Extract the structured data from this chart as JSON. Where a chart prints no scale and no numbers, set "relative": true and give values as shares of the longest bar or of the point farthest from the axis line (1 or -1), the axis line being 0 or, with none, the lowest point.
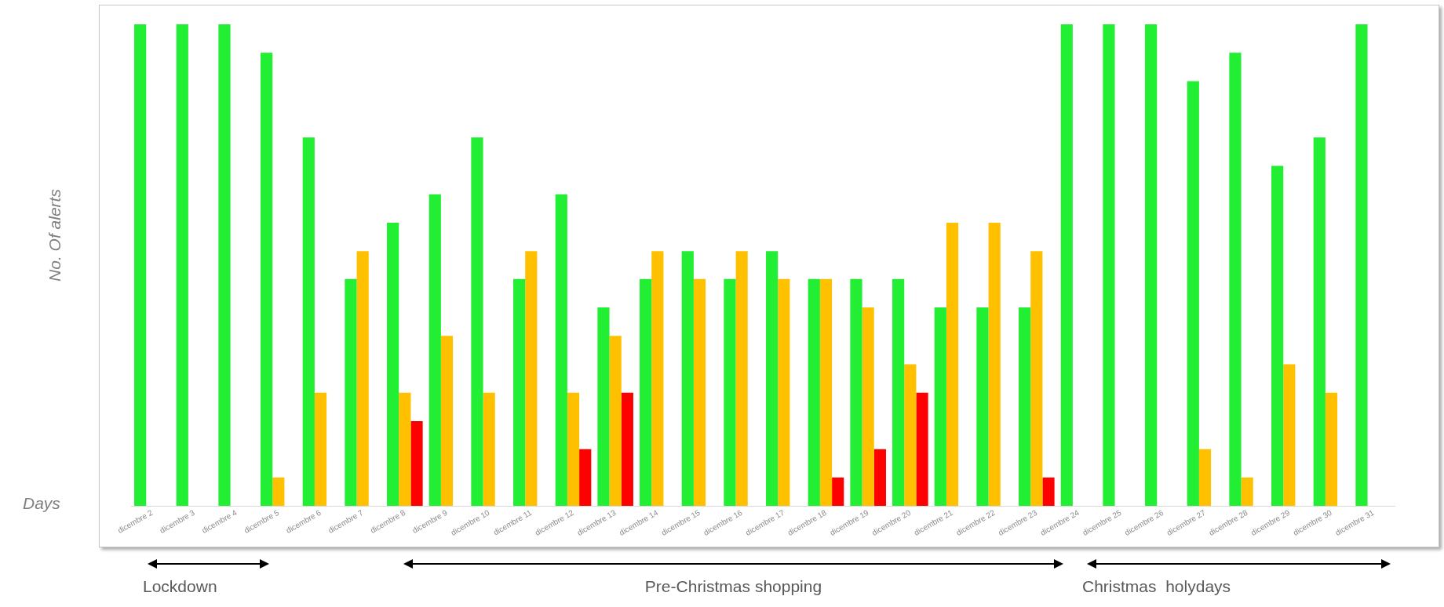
{
  "chart_data": {
    "type": "bar",
    "relative": true,
    "xlabel": "Days",
    "ylabel": "No. Of alerts",
    "categories": [
      "dicembre 2",
      "dicembre 3",
      "dicembre 4",
      "dicembre 5",
      "dicembre 6",
      "dicembre 7",
      "dicembre 8",
      "dicembre 9",
      "dicembre 10",
      "dicembre 11",
      "dicembre 12",
      "dicembre 13",
      "dicembre 14",
      "dicembre 15",
      "dicembre 16",
      "dicembre 17",
      "dicembre 18",
      "dicembre 19",
      "dicembre 20",
      "dicembre 21",
      "dicembre 22",
      "dicembre 23",
      "dicembre 24",
      "dicembre 25",
      "dicembre 26",
      "dicembre 27",
      "dicembre 28",
      "dicembre 29",
      "dicembre 30",
      "dicembre 31"
    ],
    "series": [
      {
        "color": "#22ee33",
        "values": [
          1,
          1,
          1,
          0.941,
          0.765,
          0.471,
          0.588,
          0.647,
          0.765,
          0.471,
          0.647,
          0.412,
          0.471,
          0.529,
          0.471,
          0.529,
          0.471,
          0.471,
          0.471,
          0.412,
          0.412,
          0.412,
          1,
          1,
          1,
          0.882,
          0.941,
          0.706,
          0.765,
          1
        ]
      },
      {
        "color": "#ffc000",
        "values": [
          null,
          null,
          null,
          0.059,
          0.235,
          0.529,
          0.235,
          0.353,
          0.235,
          0.529,
          0.235,
          0.353,
          0.529,
          0.471,
          0.529,
          0.471,
          0.471,
          0.412,
          0.294,
          0.588,
          0.588,
          0.529,
          null,
          null,
          null,
          0.118,
          0.059,
          0.294,
          0.235,
          null
        ]
      },
      {
        "color": "#ff0000",
        "values": [
          null,
          null,
          null,
          null,
          null,
          null,
          0.176,
          null,
          null,
          null,
          0.118,
          0.235,
          null,
          null,
          null,
          null,
          0.059,
          0.118,
          0.235,
          null,
          null,
          0.059,
          null,
          null,
          null,
          null,
          null,
          null,
          null,
          null
        ]
      }
    ],
    "legend": false,
    "grid": false,
    "annotations": [
      "Lockdown",
      "Pre-Christmas shopping",
      "Christmas  holydays"
    ]
  }
}
